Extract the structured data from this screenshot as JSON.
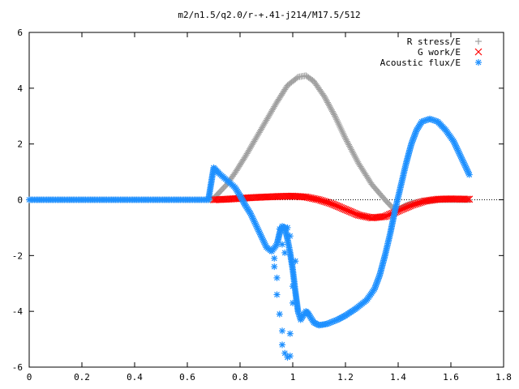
{
  "chart_data": {
    "type": "scatter",
    "title": "m2/n1.5/q2.0/r-+.41-j214/M17.5/512",
    "xlabel": "",
    "ylabel": "",
    "xlim": [
      0,
      1.8
    ],
    "ylim": [
      -6,
      6
    ],
    "xticks": [
      0,
      0.2,
      0.4,
      0.6,
      0.8,
      1,
      1.2,
      1.4,
      1.6,
      1.8
    ],
    "xtick_labels": [
      "0",
      "0.2",
      "0.4",
      "0.6",
      "0.8",
      "1",
      "1.2",
      "1.4",
      "1.6",
      "1.8"
    ],
    "yticks": [
      -6,
      -4,
      -2,
      0,
      2,
      4,
      6
    ],
    "ytick_labels": [
      "-6",
      "-4",
      "-2",
      "0",
      "2",
      "4",
      "6"
    ],
    "grid": false,
    "legend_position": "top-right",
    "series": [
      {
        "name": "R stress/E",
        "marker": "plus",
        "color": "#a0a0a0",
        "points": [
          [
            0.0,
            0.0
          ],
          [
            0.1,
            0.0
          ],
          [
            0.2,
            0.0
          ],
          [
            0.3,
            0.0
          ],
          [
            0.4,
            0.0
          ],
          [
            0.5,
            0.0
          ],
          [
            0.6,
            0.0
          ],
          [
            0.68,
            0.0
          ],
          [
            0.7,
            0.05
          ],
          [
            0.72,
            0.25
          ],
          [
            0.75,
            0.55
          ],
          [
            0.78,
            0.95
          ],
          [
            0.82,
            1.55
          ],
          [
            0.86,
            2.2
          ],
          [
            0.9,
            2.85
          ],
          [
            0.94,
            3.5
          ],
          [
            0.98,
            4.1
          ],
          [
            1.02,
            4.4
          ],
          [
            1.05,
            4.45
          ],
          [
            1.08,
            4.25
          ],
          [
            1.12,
            3.7
          ],
          [
            1.16,
            3.0
          ],
          [
            1.2,
            2.2
          ],
          [
            1.25,
            1.3
          ],
          [
            1.3,
            0.55
          ],
          [
            1.35,
            0.0
          ],
          [
            1.38,
            -0.3
          ],
          [
            1.4,
            -0.35
          ],
          [
            1.43,
            -0.2
          ],
          [
            1.46,
            -0.1
          ],
          [
            1.5,
            -0.05
          ],
          [
            1.55,
            0.0
          ],
          [
            1.6,
            0.0
          ],
          [
            1.67,
            0.0
          ]
        ]
      },
      {
        "name": "G work/E",
        "marker": "cross",
        "color": "#ff0000",
        "points": [
          [
            0.7,
            0.0
          ],
          [
            0.75,
            0.02
          ],
          [
            0.8,
            0.05
          ],
          [
            0.85,
            0.08
          ],
          [
            0.9,
            0.1
          ],
          [
            0.95,
            0.12
          ],
          [
            1.0,
            0.13
          ],
          [
            1.05,
            0.1
          ],
          [
            1.1,
            0.0
          ],
          [
            1.15,
            -0.15
          ],
          [
            1.2,
            -0.35
          ],
          [
            1.25,
            -0.55
          ],
          [
            1.3,
            -0.65
          ],
          [
            1.35,
            -0.6
          ],
          [
            1.4,
            -0.4
          ],
          [
            1.45,
            -0.2
          ],
          [
            1.5,
            -0.05
          ],
          [
            1.55,
            0.02
          ],
          [
            1.6,
            0.03
          ],
          [
            1.67,
            0.02
          ]
        ]
      },
      {
        "name": "Acoustic flux/E",
        "marker": "star",
        "color": "#1e90ff",
        "points": [
          [
            0.0,
            0.0
          ],
          [
            0.1,
            0.0
          ],
          [
            0.2,
            0.0
          ],
          [
            0.3,
            0.0
          ],
          [
            0.4,
            0.0
          ],
          [
            0.5,
            0.0
          ],
          [
            0.6,
            0.0
          ],
          [
            0.68,
            0.0
          ],
          [
            0.7,
            1.15
          ],
          [
            0.72,
            0.95
          ],
          [
            0.75,
            0.7
          ],
          [
            0.78,
            0.45
          ],
          [
            0.8,
            0.15
          ],
          [
            0.82,
            -0.2
          ],
          [
            0.84,
            -0.5
          ],
          [
            0.86,
            -0.9
          ],
          [
            0.88,
            -1.3
          ],
          [
            0.9,
            -1.7
          ],
          [
            0.92,
            -1.85
          ],
          [
            0.94,
            -1.6
          ],
          [
            0.95,
            -1.2
          ],
          [
            0.96,
            -0.95
          ],
          [
            0.97,
            -1.0
          ],
          [
            0.98,
            -1.4
          ],
          [
            0.99,
            -1.9
          ],
          [
            1.0,
            -2.5
          ],
          [
            1.01,
            -3.3
          ],
          [
            1.02,
            -4.0
          ],
          [
            1.03,
            -4.3
          ],
          [
            1.04,
            -4.15
          ],
          [
            1.05,
            -4.0
          ],
          [
            1.06,
            -4.1
          ],
          [
            1.08,
            -4.4
          ],
          [
            1.1,
            -4.5
          ],
          [
            1.13,
            -4.45
          ],
          [
            1.17,
            -4.3
          ],
          [
            1.2,
            -4.15
          ],
          [
            1.24,
            -3.9
          ],
          [
            1.28,
            -3.6
          ],
          [
            1.31,
            -3.2
          ],
          [
            1.33,
            -2.7
          ],
          [
            1.35,
            -2.0
          ],
          [
            1.37,
            -1.2
          ],
          [
            1.39,
            -0.3
          ],
          [
            1.41,
            0.5
          ],
          [
            1.43,
            1.3
          ],
          [
            1.45,
            2.0
          ],
          [
            1.47,
            2.5
          ],
          [
            1.49,
            2.8
          ],
          [
            1.52,
            2.9
          ],
          [
            1.55,
            2.8
          ],
          [
            1.58,
            2.5
          ],
          [
            1.61,
            2.1
          ],
          [
            1.64,
            1.5
          ],
          [
            1.67,
            0.9
          ]
        ],
        "scatter_points": [
          [
            0.93,
            -2.1
          ],
          [
            0.93,
            -2.4
          ],
          [
            0.94,
            -2.8
          ],
          [
            0.94,
            -3.4
          ],
          [
            0.95,
            -4.1
          ],
          [
            0.96,
            -4.7
          ],
          [
            0.96,
            -5.2
          ],
          [
            0.97,
            -5.5
          ],
          [
            0.98,
            -5.65
          ],
          [
            0.99,
            -5.6
          ],
          [
            0.99,
            -4.8
          ],
          [
            1.0,
            -3.7
          ],
          [
            1.0,
            -3.1
          ],
          [
            1.01,
            -2.2
          ],
          [
            0.99,
            -1.3
          ],
          [
            0.98,
            -1.0
          ],
          [
            0.95,
            -1.05
          ],
          [
            0.96,
            -1.6
          ],
          [
            0.97,
            -1.9
          ]
        ]
      }
    ]
  }
}
